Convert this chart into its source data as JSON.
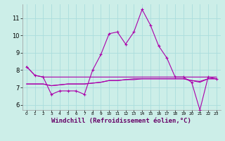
{
  "xlabel": "Windchill (Refroidissement éolien,°C)",
  "bg_color": "#cceee8",
  "grid_color": "#aadddd",
  "line_color": "#aa00aa",
  "x_hours": [
    0,
    1,
    2,
    3,
    4,
    5,
    6,
    7,
    8,
    9,
    10,
    11,
    12,
    13,
    14,
    15,
    16,
    17,
    18,
    19,
    20,
    21,
    22,
    23
  ],
  "series_main": [
    8.2,
    7.7,
    7.6,
    6.6,
    6.8,
    6.8,
    6.8,
    6.6,
    8.0,
    8.9,
    10.1,
    10.2,
    9.5,
    10.2,
    11.5,
    10.6,
    9.4,
    8.7,
    7.6,
    7.6,
    7.3,
    5.7,
    7.6,
    7.5
  ],
  "series_upper": [
    8.2,
    7.7,
    7.6,
    7.6,
    7.6,
    7.6,
    7.6,
    7.6,
    7.6,
    7.6,
    7.6,
    7.6,
    7.6,
    7.6,
    7.6,
    7.6,
    7.6,
    7.6,
    7.6,
    7.6,
    7.6,
    7.6,
    7.6,
    7.6
  ],
  "series_mid1": [
    7.2,
    7.2,
    7.2,
    7.1,
    7.15,
    7.2,
    7.2,
    7.2,
    7.25,
    7.3,
    7.4,
    7.4,
    7.45,
    7.45,
    7.5,
    7.5,
    7.5,
    7.5,
    7.5,
    7.5,
    7.4,
    7.3,
    7.5,
    7.5
  ],
  "series_mid2": [
    7.2,
    7.2,
    7.2,
    7.1,
    7.15,
    7.2,
    7.2,
    7.2,
    7.25,
    7.3,
    7.4,
    7.4,
    7.45,
    7.5,
    7.5,
    7.5,
    7.5,
    7.5,
    7.5,
    7.5,
    7.4,
    7.35,
    7.5,
    7.5
  ],
  "ylim": [
    5.7,
    11.8
  ],
  "yticks": [
    6,
    7,
    8,
    9,
    10,
    11
  ],
  "xtick_labels": [
    "0",
    "1",
    "2",
    "3",
    "4",
    "5",
    "6",
    "7",
    "8",
    "9",
    "10",
    "11",
    "12",
    "13",
    "14",
    "15",
    "16",
    "17",
    "18",
    "19",
    "20",
    "21",
    "22",
    "23"
  ],
  "xlabel_color": "#660066",
  "xlabel_fontsize": 6.5
}
